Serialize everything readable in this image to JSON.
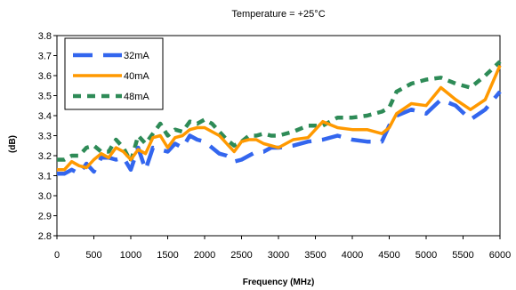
{
  "chart_data": {
    "type": "line",
    "title": "Temperature = +25°C",
    "xlabel": "Frequency (MHz)",
    "ylabel": "(dB)",
    "xlim": [
      0,
      6000
    ],
    "ylim": [
      2.8,
      3.8
    ],
    "x_ticks": [
      0,
      500,
      1000,
      1500,
      2000,
      2500,
      3000,
      3500,
      4000,
      4500,
      5000,
      5500,
      6000
    ],
    "y_ticks": [
      "2.8",
      "2.9",
      "3.0",
      "3.1",
      "3.2",
      "3.3",
      "3.4",
      "3.5",
      "3.6",
      "3.7",
      "3.8"
    ],
    "grid": "none",
    "legend_position": "top-left",
    "x": [
      0,
      100,
      200,
      300,
      400,
      500,
      600,
      700,
      800,
      900,
      1000,
      1100,
      1200,
      1300,
      1400,
      1500,
      1600,
      1700,
      1800,
      1900,
      2000,
      2100,
      2200,
      2300,
      2400,
      2500,
      2600,
      2700,
      2800,
      2900,
      3000,
      3200,
      3400,
      3600,
      3800,
      4000,
      4200,
      4400,
      4500,
      4600,
      4800,
      5000,
      5200,
      5400,
      5600,
      5800,
      6000
    ],
    "series": [
      {
        "name": "32mA",
        "color": "#3366ee",
        "dash": "long-dash",
        "values": [
          3.11,
          3.11,
          3.13,
          3.11,
          3.16,
          3.12,
          3.19,
          3.19,
          3.18,
          3.19,
          3.13,
          3.24,
          3.13,
          3.24,
          3.23,
          3.22,
          3.26,
          3.24,
          3.3,
          3.28,
          3.27,
          3.24,
          3.21,
          3.2,
          3.17,
          3.18,
          3.2,
          3.22,
          3.22,
          3.24,
          3.24,
          3.25,
          3.27,
          3.28,
          3.3,
          3.28,
          3.27,
          3.27,
          3.35,
          3.4,
          3.43,
          3.41,
          3.48,
          3.45,
          3.38,
          3.43,
          3.52
        ]
      },
      {
        "name": "40mA",
        "color": "#ff9900",
        "dash": "solid",
        "values": [
          3.13,
          3.13,
          3.17,
          3.15,
          3.14,
          3.18,
          3.21,
          3.19,
          3.24,
          3.22,
          3.18,
          3.23,
          3.21,
          3.29,
          3.3,
          3.24,
          3.29,
          3.3,
          3.33,
          3.34,
          3.34,
          3.32,
          3.3,
          3.26,
          3.22,
          3.27,
          3.28,
          3.28,
          3.26,
          3.25,
          3.24,
          3.28,
          3.29,
          3.37,
          3.34,
          3.33,
          3.33,
          3.31,
          3.34,
          3.41,
          3.46,
          3.45,
          3.54,
          3.48,
          3.43,
          3.48,
          3.65
        ]
      },
      {
        "name": "48mA",
        "color": "#2e8b57",
        "dash": "short-dash",
        "values": [
          3.18,
          3.18,
          3.2,
          3.2,
          3.24,
          3.25,
          3.22,
          3.22,
          3.28,
          3.24,
          3.17,
          3.3,
          3.26,
          3.31,
          3.36,
          3.3,
          3.33,
          3.32,
          3.37,
          3.36,
          3.38,
          3.36,
          3.32,
          3.28,
          3.25,
          3.27,
          3.3,
          3.3,
          3.31,
          3.3,
          3.3,
          3.32,
          3.35,
          3.35,
          3.39,
          3.39,
          3.4,
          3.42,
          3.44,
          3.52,
          3.56,
          3.58,
          3.59,
          3.56,
          3.54,
          3.6,
          3.67
        ]
      }
    ]
  }
}
